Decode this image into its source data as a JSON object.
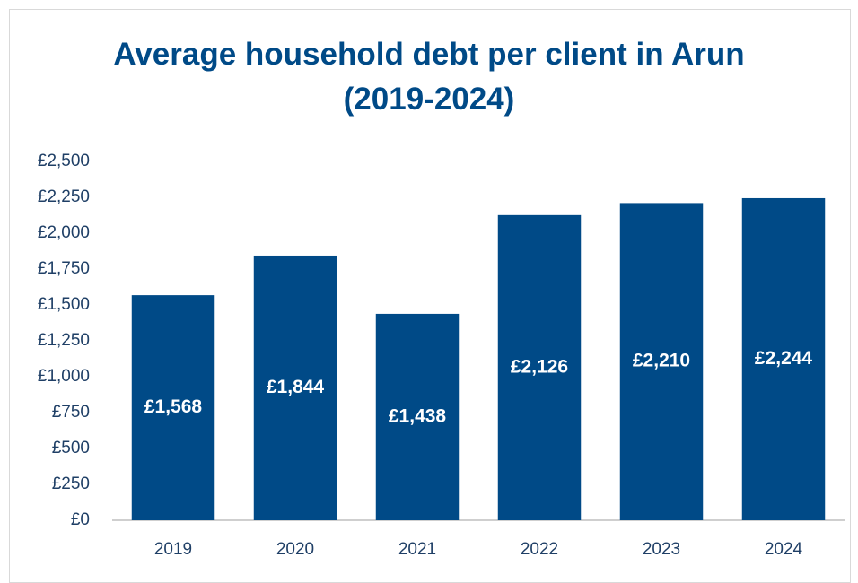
{
  "chart_data": {
    "type": "bar",
    "title": "Average household debt per client in Arun (2019-2024)",
    "categories": [
      "2019",
      "2020",
      "2021",
      "2022",
      "2023",
      "2024"
    ],
    "values": [
      1568,
      1844,
      1438,
      2126,
      2210,
      2244
    ],
    "value_labels": [
      "£1,568",
      "£1,844",
      "£1,438",
      "£2,126",
      "£2,210",
      "£2,244"
    ],
    "color": "#004a87",
    "ylim": [
      0,
      2500
    ],
    "yticks": [
      {
        "value": 0,
        "label": "£0"
      },
      {
        "value": 250,
        "label": "£250"
      },
      {
        "value": 500,
        "label": "£500"
      },
      {
        "value": 750,
        "label": "£750"
      },
      {
        "value": 1000,
        "label": "£1,000"
      },
      {
        "value": 1250,
        "label": "£1,250"
      },
      {
        "value": 1500,
        "label": "£1,500"
      },
      {
        "value": 1750,
        "label": "£1,750"
      },
      {
        "value": 2000,
        "label": "£2,000"
      },
      {
        "value": 2250,
        "label": "£2,250"
      },
      {
        "value": 2500,
        "label": "£2,500"
      }
    ],
    "grid": false
  }
}
